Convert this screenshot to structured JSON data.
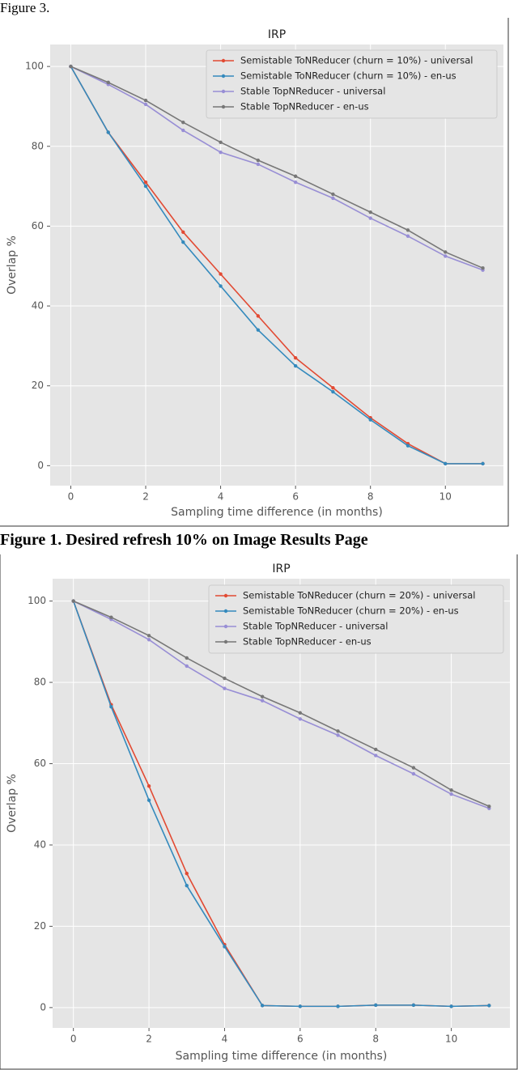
{
  "header_text": "Figure 3.",
  "caption": "Figure 1. Desired refresh 10% on Image Results Page",
  "chart_data": [
    {
      "type": "line",
      "title": "IRP",
      "x_label": "Sampling time difference (in months)",
      "y_label": "Overlap %",
      "x": [
        0,
        1,
        2,
        3,
        4,
        5,
        6,
        7,
        8,
        9,
        10,
        11
      ],
      "series": [
        {
          "name": "Semistable ToNReducer (churn = 10%) - universal",
          "color": "#e24a33",
          "values": [
            100,
            83.5,
            71,
            58.5,
            48,
            37.5,
            27,
            19.5,
            12,
            5.5,
            0.5,
            0.5
          ]
        },
        {
          "name": "Semistable ToNReducer (churn = 10%) - en-us",
          "color": "#348abd",
          "values": [
            100,
            83.5,
            70,
            56,
            45,
            34,
            25,
            18.5,
            11.5,
            5,
            0.5,
            0.5
          ]
        },
        {
          "name": "Stable TopNReducer - universal",
          "color": "#988ed5",
          "values": [
            100,
            95.5,
            90.5,
            84,
            78.5,
            75.5,
            71,
            67,
            62,
            57.5,
            52.5,
            49
          ]
        },
        {
          "name": "Stable TopNReducer - en-us",
          "color": "#777777",
          "values": [
            100,
            96,
            91.5,
            86,
            81,
            76.5,
            72.5,
            68,
            63.5,
            59,
            53.5,
            49.5
          ]
        }
      ],
      "xlim": [
        -0.55,
        11.55
      ],
      "ylim": [
        -5,
        105.5
      ],
      "xticks": [
        0,
        2,
        4,
        6,
        8,
        10
      ],
      "yticks": [
        0,
        20,
        40,
        60,
        80,
        100
      ],
      "grid": true,
      "legend": "upper right"
    },
    {
      "type": "line",
      "title": "IRP",
      "x_label": "Sampling time difference (in months)",
      "y_label": "Overlap %",
      "x": [
        0,
        1,
        2,
        3,
        4,
        5,
        6,
        7,
        8,
        9,
        10,
        11
      ],
      "series": [
        {
          "name": "Semistable ToNReducer (churn = 20%) - universal",
          "color": "#e24a33",
          "values": [
            100,
            74.5,
            54.5,
            33,
            15.5,
            0.5,
            0.3,
            0.3,
            0.6,
            0.6,
            0.3,
            0.5
          ]
        },
        {
          "name": "Semistable ToNReducer (churn = 20%) - en-us",
          "color": "#348abd",
          "values": [
            100,
            74,
            51,
            30,
            15,
            0.5,
            0.3,
            0.3,
            0.6,
            0.6,
            0.3,
            0.5
          ]
        },
        {
          "name": "Stable TopNReducer - universal",
          "color": "#988ed5",
          "values": [
            100,
            95.5,
            90.5,
            84,
            78.5,
            75.5,
            71,
            67,
            62,
            57.5,
            52.5,
            49
          ]
        },
        {
          "name": "Stable TopNReducer - en-us",
          "color": "#777777",
          "values": [
            100,
            96,
            91.5,
            86,
            81,
            76.5,
            72.5,
            68,
            63.5,
            59,
            53.5,
            49.5
          ]
        }
      ],
      "xlim": [
        -0.55,
        11.55
      ],
      "ylim": [
        -5,
        105.5
      ],
      "xticks": [
        0,
        2,
        4,
        6,
        8,
        10
      ],
      "yticks": [
        0,
        20,
        40,
        60,
        80,
        100
      ],
      "grid": true,
      "legend": "upper right"
    }
  ]
}
